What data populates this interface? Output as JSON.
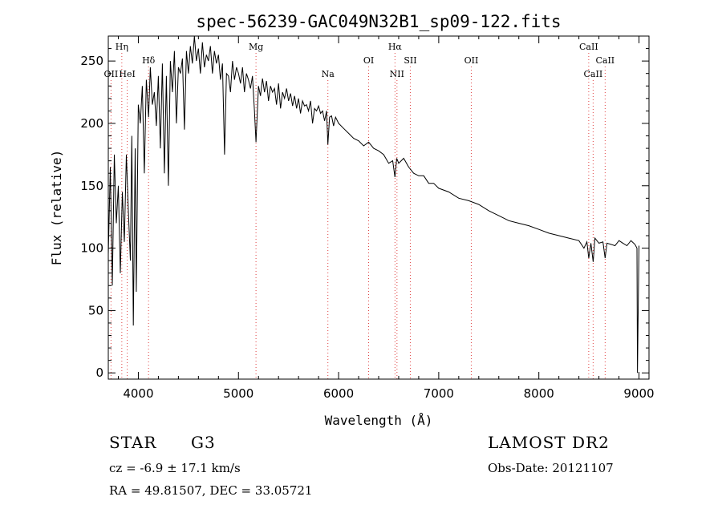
{
  "chart_data": {
    "type": "line",
    "title": "spec-56239-GAC049N32B1_sp09-122.fits",
    "xlabel": "Wavelength (Å)",
    "ylabel": "Flux (relative)",
    "xlim": [
      3700,
      9100
    ],
    "ylim": [
      -5,
      270
    ],
    "xticks": [
      4000,
      5000,
      6000,
      7000,
      8000,
      9000
    ],
    "yticks": [
      0,
      50,
      100,
      150,
      200,
      250
    ],
    "grid": false,
    "series": [
      {
        "x": [
          3700,
          3720,
          3740,
          3760,
          3780,
          3800,
          3820,
          3840,
          3860,
          3880,
          3900,
          3920,
          3935,
          3950,
          3968,
          3980,
          4000,
          4020,
          4040,
          4060,
          4080,
          4102,
          4120,
          4140,
          4160,
          4180,
          4200,
          4220,
          4240,
          4260,
          4280,
          4300,
          4320,
          4340,
          4360,
          4380,
          4400,
          4420,
          4440,
          4460,
          4480,
          4500,
          4520,
          4540,
          4560,
          4580,
          4600,
          4620,
          4640,
          4660,
          4680,
          4700,
          4720,
          4740,
          4760,
          4780,
          4800,
          4820,
          4840,
          4861,
          4880,
          4900,
          4920,
          4940,
          4960,
          4980,
          5000,
          5020,
          5040,
          5060,
          5080,
          5100,
          5120,
          5140,
          5160,
          5175,
          5200,
          5220,
          5240,
          5260,
          5280,
          5300,
          5320,
          5340,
          5360,
          5380,
          5400,
          5420,
          5440,
          5460,
          5480,
          5500,
          5520,
          5540,
          5560,
          5580,
          5600,
          5620,
          5640,
          5660,
          5680,
          5700,
          5720,
          5740,
          5760,
          5780,
          5800,
          5820,
          5840,
          5860,
          5880,
          5893,
          5910,
          5930,
          5950,
          5970,
          6000,
          6050,
          6100,
          6150,
          6200,
          6250,
          6300,
          6350,
          6400,
          6450,
          6500,
          6540,
          6563,
          6580,
          6600,
          6650,
          6700,
          6750,
          6800,
          6850,
          6900,
          6950,
          7000,
          7100,
          7200,
          7300,
          7400,
          7500,
          7600,
          7700,
          7800,
          7900,
          8000,
          8100,
          8200,
          8300,
          8400,
          8450,
          8480,
          8498,
          8520,
          8542,
          8560,
          8600,
          8640,
          8662,
          8680,
          8720,
          8760,
          8800,
          8840,
          8880,
          8920,
          8960,
          8980,
          8985,
          9000
        ],
        "values": [
          95,
          165,
          70,
          175,
          120,
          150,
          80,
          145,
          105,
          175,
          130,
          90,
          190,
          38,
          180,
          65,
          215,
          200,
          230,
          160,
          235,
          205,
          245,
          215,
          225,
          198,
          238,
          180,
          248,
          160,
          238,
          150,
          250,
          225,
          258,
          200,
          245,
          240,
          252,
          195,
          258,
          240,
          262,
          248,
          270,
          250,
          260,
          240,
          265,
          245,
          255,
          250,
          262,
          240,
          258,
          248,
          255,
          235,
          248,
          175,
          240,
          238,
          225,
          250,
          235,
          245,
          240,
          232,
          245,
          225,
          240,
          235,
          228,
          238,
          210,
          185,
          230,
          222,
          236,
          225,
          234,
          218,
          230,
          225,
          228,
          215,
          232,
          212,
          225,
          220,
          228,
          218,
          224,
          214,
          222,
          212,
          220,
          208,
          218,
          214,
          215,
          210,
          218,
          200,
          212,
          210,
          214,
          208,
          210,
          202,
          210,
          183,
          205,
          206,
          198,
          205,
          200,
          196,
          192,
          188,
          186,
          182,
          185,
          180,
          178,
          175,
          168,
          170,
          157,
          172,
          168,
          172,
          165,
          160,
          158,
          158,
          152,
          152,
          148,
          145,
          140,
          138,
          135,
          130,
          126,
          122,
          120,
          118,
          115,
          112,
          110,
          108,
          106,
          100,
          105,
          92,
          104,
          89,
          108,
          104,
          105,
          92,
          104,
          103,
          102,
          106,
          104,
          102,
          106,
          103,
          100,
          0,
          102
        ]
      }
    ],
    "lines": [
      {
        "label": "OII",
        "x": 3727,
        "row": 3
      },
      {
        "label": "Hη",
        "x": 3835,
        "row": 1
      },
      {
        "label": "HeI",
        "x": 3889,
        "row": 3
      },
      {
        "label": "Hδ",
        "x": 4102,
        "row": 2
      },
      {
        "label": "Mg",
        "x": 5175,
        "row": 1
      },
      {
        "label": "Na",
        "x": 5893,
        "row": 3
      },
      {
        "label": "OI",
        "x": 6300,
        "row": 2
      },
      {
        "label": "Hα",
        "x": 6563,
        "row": 1
      },
      {
        "label": "NII",
        "x": 6583,
        "row": 3
      },
      {
        "label": "SII",
        "x": 6716,
        "row": 2
      },
      {
        "label": "OII",
        "x": 7325,
        "row": 2
      },
      {
        "label": "CaII",
        "x": 8498,
        "row": 1
      },
      {
        "label": "CaII",
        "x": 8542,
        "row": 3
      },
      {
        "label": "CaII",
        "x": 8662,
        "row": 2
      }
    ]
  },
  "info": {
    "object_type": "STAR",
    "subclass": "G3",
    "survey": "LAMOST DR2",
    "redshift": "cz = -6.9 ± 17.1 km/s",
    "obs_date": "Obs-Date: 20121107",
    "coords": "RA =  49.81507, DEC =  33.05721"
  },
  "colors": {
    "spectrum": "#000000",
    "line_marker": "#e04040",
    "axis": "#000000"
  }
}
